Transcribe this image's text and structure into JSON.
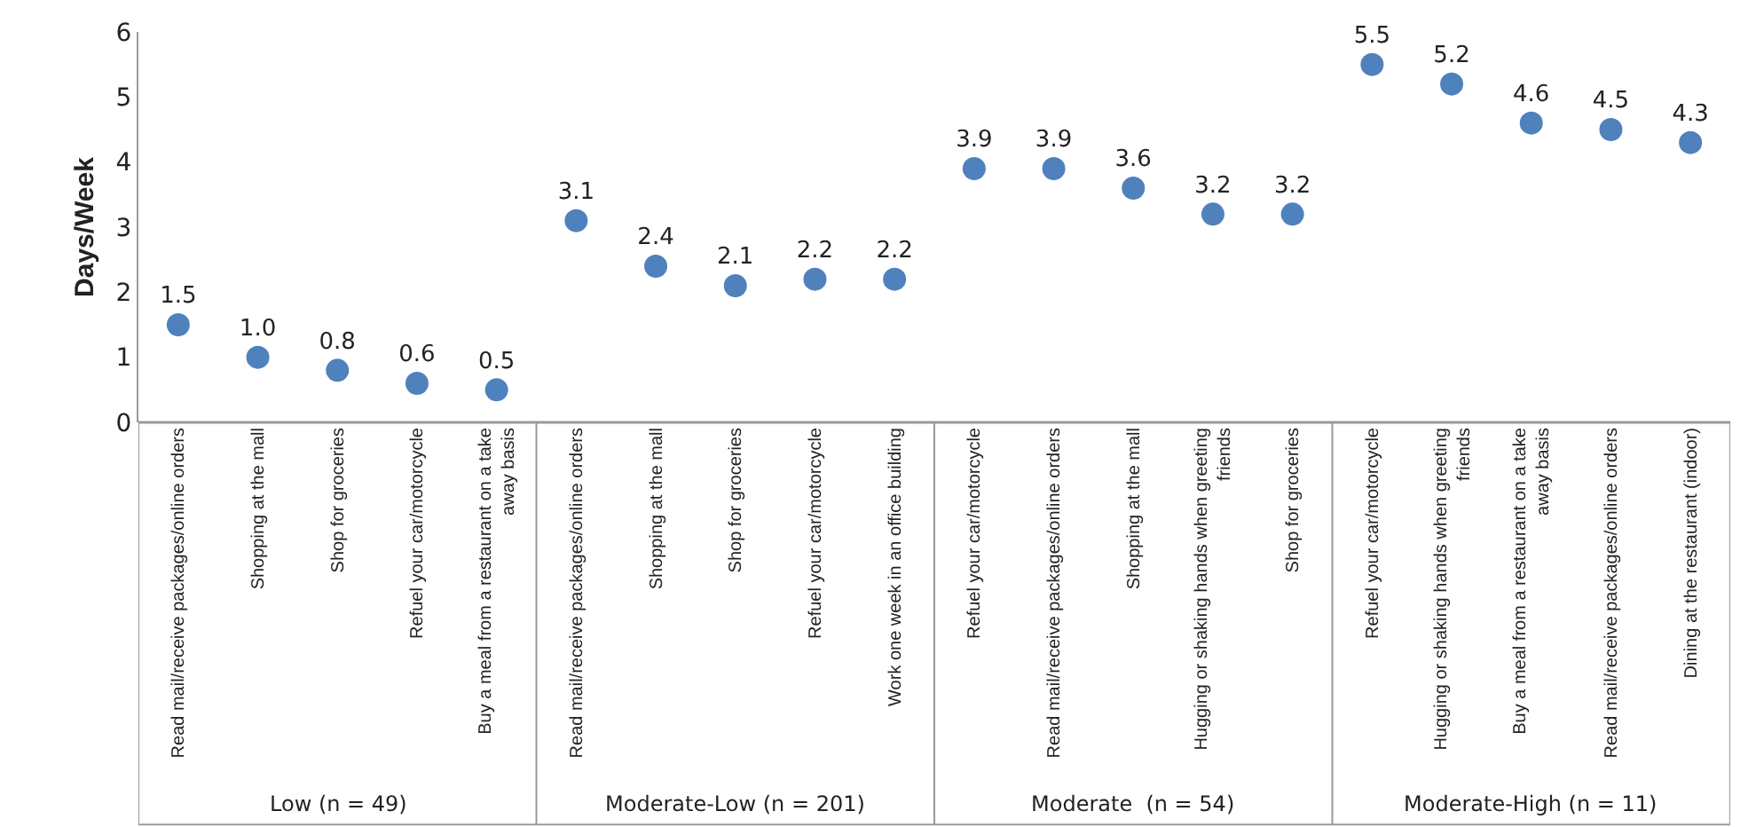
{
  "chart_data": {
    "type": "scatter",
    "ylabel": "Days/Week",
    "categories": [
      "Read mail/receive packages/online orders",
      "Shopping at the mall",
      "Shop for groceries",
      "Refuel your car/motorcycle",
      "Buy a meal from a restaurant on a take away basis",
      "Read mail/receive packages/online orders",
      "Shopping at the mall",
      "Shop for groceries",
      "Refuel your car/motorcycle",
      "Work one week in an office building",
      "Refuel your car/motorcycle",
      "Read mail/receive packages/online orders",
      "Shopping at the mall",
      "Hugging or shaking hands when greeting friends",
      "Shop for groceries",
      "Refuel your car/motorcycle",
      "Hugging or shaking hands when greeting friends",
      "Buy a meal from a restaurant on a take away basis",
      "Read mail/receive packages/online orders",
      "Dining at the restaurant (indoor)"
    ],
    "values": [
      1.5,
      1.0,
      0.8,
      0.6,
      0.5,
      3.1,
      2.4,
      2.1,
      2.2,
      2.2,
      3.9,
      3.9,
      3.6,
      3.2,
      3.2,
      5.5,
      5.2,
      4.6,
      4.5,
      4.3
    ],
    "value_labels": [
      "1.5",
      "1.0",
      "0.8",
      "0.6",
      "0.5",
      "3.1",
      "2.4",
      "2.1",
      "2.2",
      "2.2",
      "3.9",
      "3.9",
      "3.6",
      "3.2",
      "3.2",
      "5.5",
      "5.2",
      "4.6",
      "4.5",
      "4.3"
    ],
    "color": "#4f81bd",
    "marker": "circle",
    "ylim": [
      0,
      6
    ],
    "yticks": [
      0,
      1,
      2,
      3,
      4,
      5,
      6
    ],
    "annotations": [
      "Low (n = 49)",
      "Moderate-Low (n = 201)",
      "Moderate  (n = 54)",
      "Moderate-High (n = 11)"
    ]
  }
}
